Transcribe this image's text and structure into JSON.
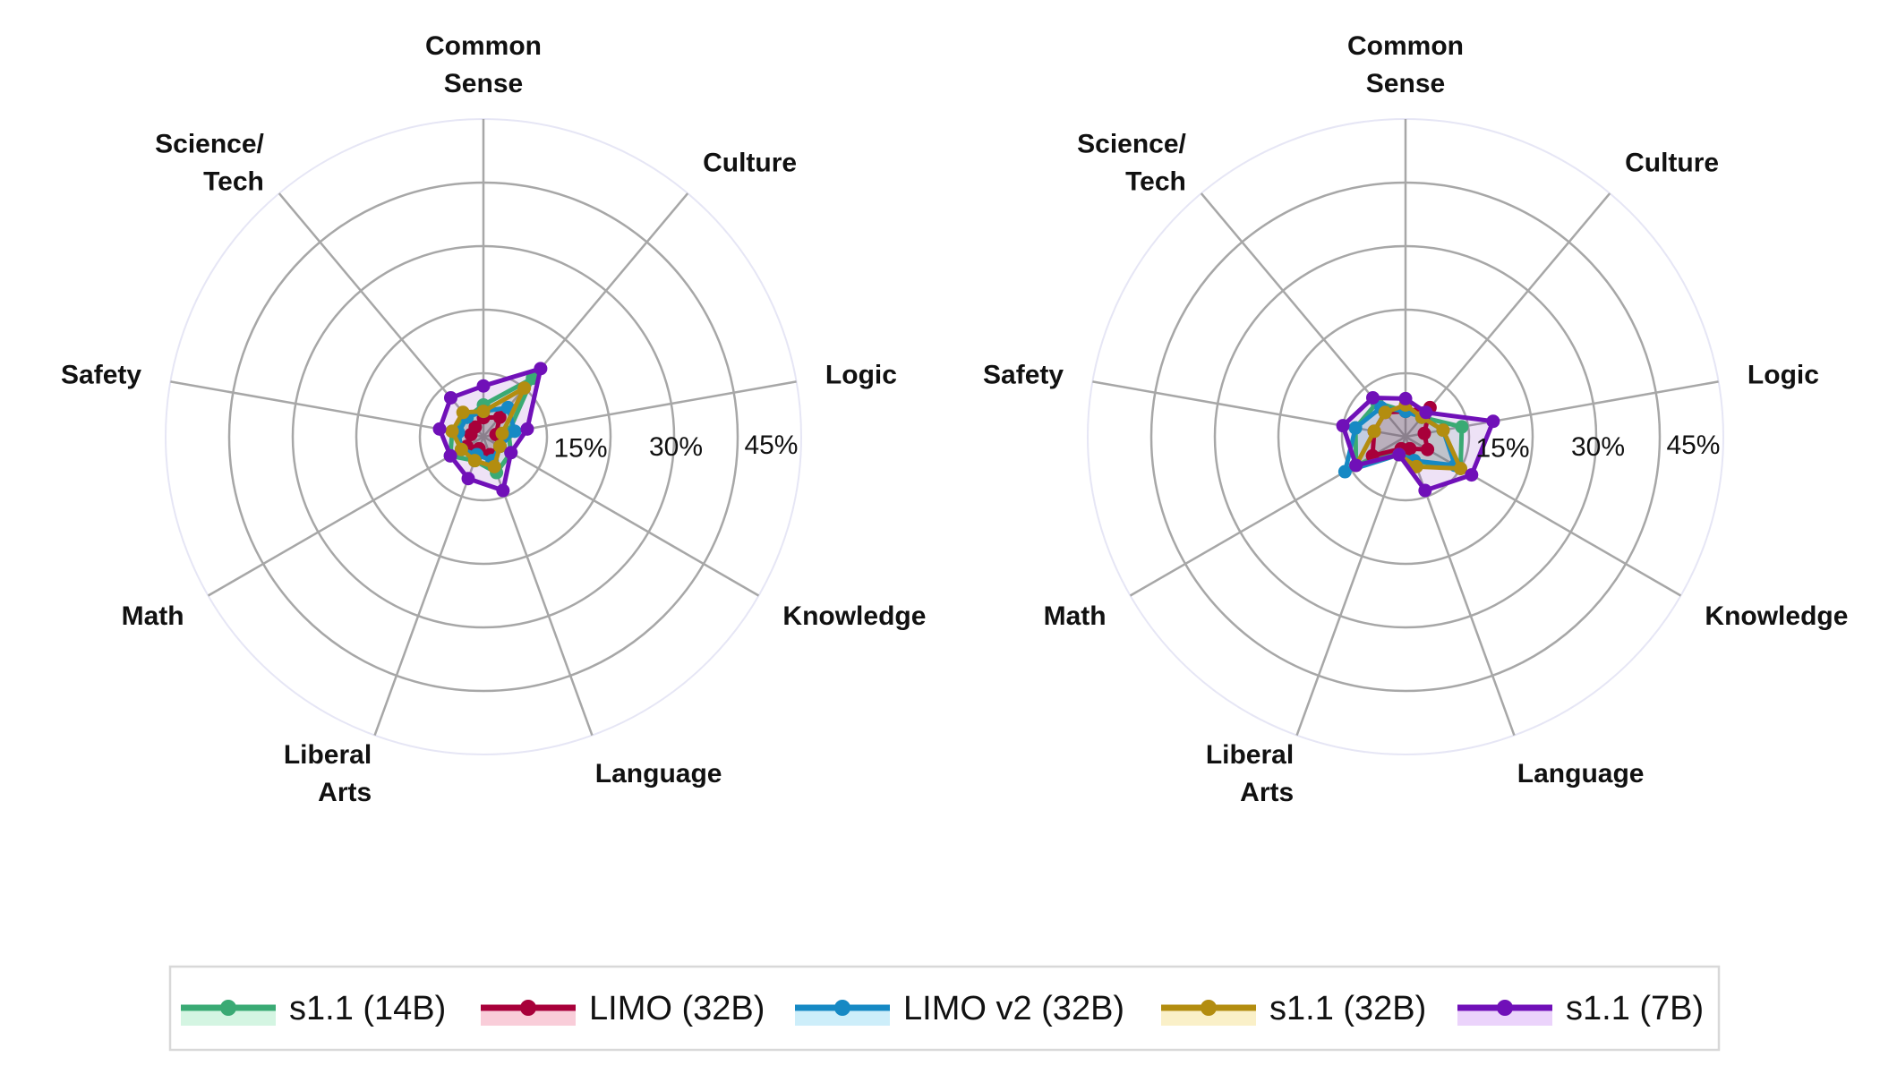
{
  "chart_data": [
    {
      "type": "radar",
      "title": "",
      "categories": [
        "Common Sense",
        "Culture",
        "Logic",
        "Knowledge",
        "Language",
        "Liberal Arts",
        "Math",
        "Safety",
        "Science/Tech"
      ],
      "category_labels": [
        [
          "Common",
          "Sense"
        ],
        [
          "Culture"
        ],
        [
          "Logic"
        ],
        [
          "Knowledge"
        ],
        [
          "Language"
        ],
        [
          "Liberal",
          "Arts"
        ],
        [
          "Math"
        ],
        [
          "Safety"
        ],
        [
          "Science/",
          "Tech"
        ]
      ],
      "rlim": [
        0,
        50
      ],
      "r_ticks": [
        15,
        30,
        45
      ],
      "r_tick_labels": [
        "15%",
        "30%",
        "45%"
      ],
      "series": [
        {
          "name": "s1.1 (14B)",
          "values": [
            5,
            12,
            4,
            5,
            6,
            4,
            6,
            5,
            4
          ]
        },
        {
          "name": "LIMO (32B)",
          "values": [
            3,
            4,
            2,
            3,
            3,
            2,
            3,
            2,
            2
          ]
        },
        {
          "name": "LIMO v2 (32B)",
          "values": [
            4,
            6,
            5,
            3,
            4,
            3,
            4,
            4,
            4
          ]
        },
        {
          "name": "s1.1 (32B)",
          "values": [
            4,
            10,
            3,
            3,
            5,
            4,
            4,
            5,
            5
          ]
        },
        {
          "name": "s1.1 (7B)",
          "values": [
            8,
            14,
            7,
            5,
            9,
            7,
            6,
            7,
            8
          ]
        }
      ]
    },
    {
      "type": "radar",
      "title": "",
      "categories": [
        "Common Sense",
        "Culture",
        "Logic",
        "Knowledge",
        "Language",
        "Liberal Arts",
        "Math",
        "Safety",
        "Science/Tech"
      ],
      "category_labels": [
        [
          "Common",
          "Sense"
        ],
        [
          "Culture"
        ],
        [
          "Logic"
        ],
        [
          "Knowledge"
        ],
        [
          "Language"
        ],
        [
          "Liberal",
          "Arts"
        ],
        [
          "Math"
        ],
        [
          "Safety"
        ],
        [
          "Science/",
          "Tech"
        ]
      ],
      "rlim": [
        0,
        50
      ],
      "r_ticks": [
        15,
        30,
        45
      ],
      "r_tick_labels": [
        "15%",
        "30%",
        "45%"
      ],
      "series": [
        {
          "name": "s1.1 (14B)",
          "values": [
            4,
            4,
            9,
            10,
            4,
            2,
            9,
            8,
            7
          ]
        },
        {
          "name": "LIMO (32B)",
          "values": [
            4,
            6,
            3,
            4,
            2,
            2,
            6,
            5,
            5
          ]
        },
        {
          "name": "LIMO v2 (32B)",
          "values": [
            4,
            4,
            6,
            9,
            4,
            3,
            11,
            8,
            6
          ]
        },
        {
          "name": "s1.1 (32B)",
          "values": [
            5,
            4,
            6,
            10,
            5,
            3,
            9,
            5,
            5
          ]
        },
        {
          "name": "s1.1 (7B)",
          "values": [
            6,
            5,
            14,
            12,
            9,
            3,
            9,
            10,
            8
          ]
        }
      ]
    }
  ],
  "legend": {
    "items": [
      {
        "label": "s1.1 (14B)",
        "color": "#3aaa74",
        "fill": "#d4f5e2"
      },
      {
        "label": "LIMO (32B)",
        "color": "#a8003a",
        "fill": "#f9cdd9"
      },
      {
        "label": "LIMO v2 (32B)",
        "color": "#1689c4",
        "fill": "#cdeefa"
      },
      {
        "label": "s1.1 (32B)",
        "color": "#b38d10",
        "fill": "#faf0c8"
      },
      {
        "label": "s1.1 (7B)",
        "color": "#7010b8",
        "fill": "#ebd3fb"
      }
    ]
  },
  "colors": {
    "grid": "#a7a7a7",
    "outer_ring": "#e6e6f5"
  }
}
